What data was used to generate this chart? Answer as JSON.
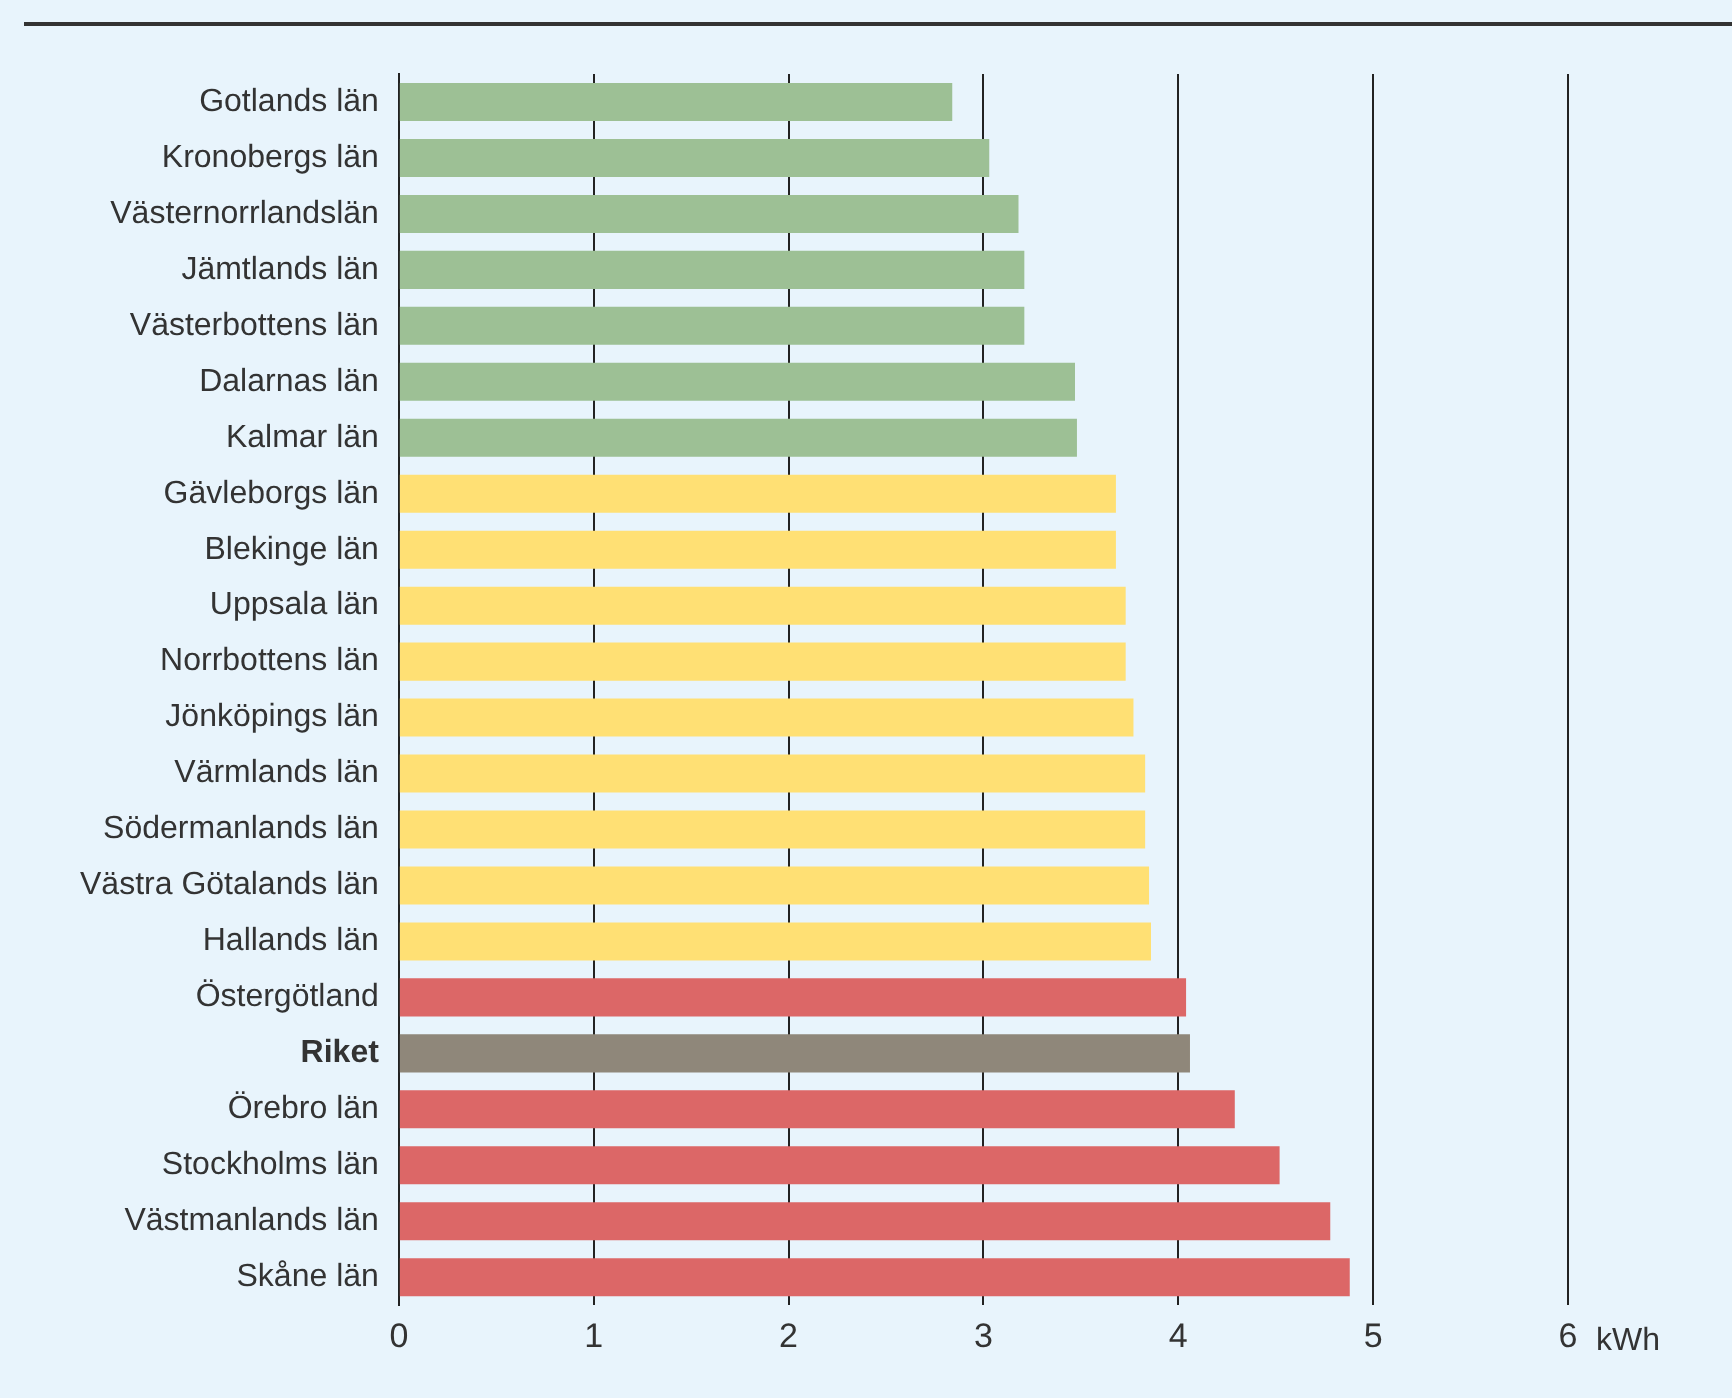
{
  "chart_data": {
    "type": "bar",
    "orientation": "horizontal",
    "xlabel": "kWh",
    "categories": [
      "Gotlands län",
      "Kronobergs län",
      "Västernorrlandslän",
      "Jämtlands län",
      "Västerbottens län",
      "Dalarnas län",
      "Kalmar län",
      "Gävleborgs län",
      "Blekinge län",
      "Uppsala län",
      "Norrbottens län",
      "Jönköpings län",
      "Värmlands län",
      "Södermanlands län",
      "Västra Götalands län",
      "Hallands län",
      "Östergötland",
      "Riket",
      "Örebro län",
      "Stockholms län",
      "Västmanlands län",
      "Skåne län"
    ],
    "values": [
      2.84,
      3.03,
      3.18,
      3.21,
      3.21,
      3.47,
      3.48,
      3.68,
      3.68,
      3.73,
      3.73,
      3.77,
      3.83,
      3.83,
      3.85,
      3.86,
      4.04,
      4.06,
      4.29,
      4.52,
      4.78,
      4.88
    ],
    "colors": [
      "#9dc095",
      "#9dc095",
      "#9dc095",
      "#9dc095",
      "#9dc095",
      "#9dc095",
      "#9dc095",
      "#ffe074",
      "#ffe074",
      "#ffe074",
      "#ffe074",
      "#ffe074",
      "#ffe074",
      "#ffe074",
      "#ffe074",
      "#ffe074",
      "#dc6767",
      "#8f877a",
      "#dc6767",
      "#dc6767",
      "#dc6767",
      "#dc6767"
    ],
    "xlim": [
      0,
      6
    ],
    "xticks": [
      0,
      1,
      2,
      3,
      4,
      5,
      6
    ],
    "grid": "x",
    "legend": false
  }
}
